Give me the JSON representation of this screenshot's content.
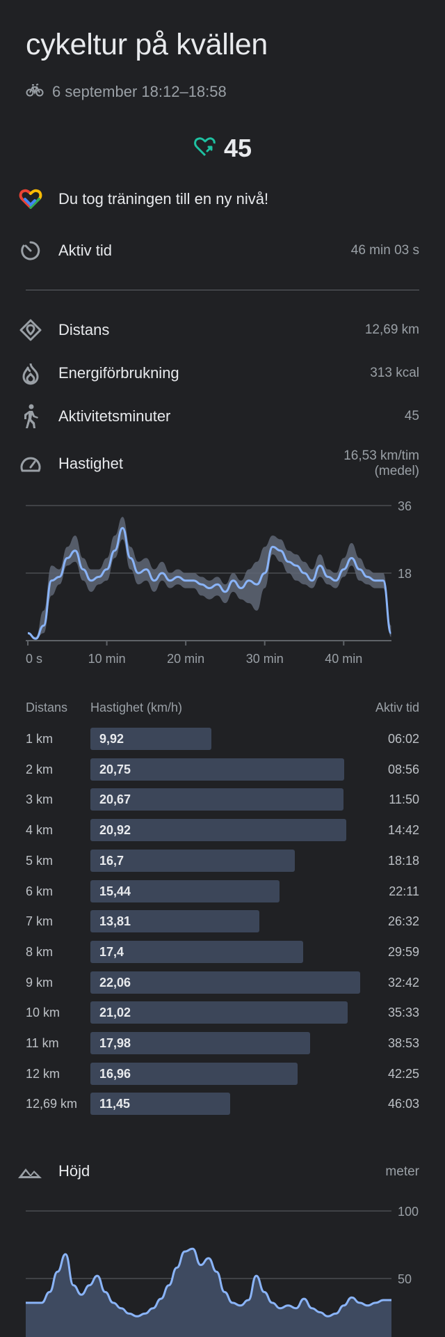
{
  "header": {
    "title": "cykeltur på kvällen",
    "subtitle": "6 september 18:12–18:58",
    "subtitle_icon": "bike-icon"
  },
  "heart_points": {
    "icon": "heart-points-icon",
    "value": "45",
    "color": "#1ec1a1"
  },
  "achievement": {
    "icon": "google-fit-icon",
    "text": "Du tog träningen till en ny nivå!"
  },
  "stats": {
    "active_time": {
      "icon": "timer-icon",
      "label": "Aktiv tid",
      "value": "46 min 03 s"
    },
    "distance": {
      "icon": "location-pin-icon",
      "label": "Distans",
      "value": "12,69 km"
    },
    "energy": {
      "icon": "flame-icon",
      "label": "Energiförbrukning",
      "value": "313 kcal"
    },
    "move_minutes": {
      "icon": "walking-person-icon",
      "label": "Aktivitetsminuter",
      "value": "45"
    },
    "speed": {
      "icon": "speedometer-icon",
      "label": "Hastighet",
      "value_line1": "16,53 km/tim",
      "value_line2": "(medel)"
    }
  },
  "speed_chart": {
    "y_ticks": [
      "36",
      "18"
    ],
    "x_ticks": [
      "0 s",
      "10 min",
      "20 min",
      "30 min",
      "40 min"
    ]
  },
  "chart_data": [
    {
      "type": "line",
      "xlabel": "",
      "ylabel": "",
      "xlim": [
        0,
        46.05
      ],
      "ylim": [
        0,
        36
      ],
      "grid": true,
      "x": [
        0,
        1,
        2,
        3,
        4,
        5,
        6,
        7,
        8,
        9,
        10,
        11,
        12,
        13,
        14,
        15,
        16,
        17,
        18,
        19,
        20,
        21,
        22,
        23,
        24,
        25,
        26,
        27,
        28,
        29,
        30,
        31,
        32,
        33,
        34,
        35,
        36,
        37,
        38,
        39,
        40,
        41,
        42,
        43,
        44,
        45,
        46
      ],
      "series": [
        {
          "values": [
            2,
            0.5,
            4,
            16,
            17,
            22,
            24,
            19,
            16,
            17,
            19,
            24,
            30,
            22,
            18,
            19,
            16,
            18,
            16,
            17,
            16,
            16,
            15,
            14,
            15,
            13,
            16,
            14,
            16,
            15,
            18,
            25,
            24,
            21,
            20,
            18,
            16,
            20,
            17,
            16,
            19,
            22,
            19,
            17,
            16,
            16,
            2
          ]
        }
      ],
      "band": {
        "lower": [
          2,
          0.5,
          2,
          12,
          15,
          20,
          21,
          16,
          13,
          15,
          16,
          22,
          27,
          19,
          15,
          16,
          13,
          16,
          14,
          15,
          14,
          14,
          12,
          11,
          12,
          10,
          13,
          11,
          10,
          8,
          14,
          23,
          21,
          18,
          16,
          15,
          14,
          17,
          15,
          14,
          17,
          20,
          16,
          15,
          14,
          14,
          1
        ],
        "upper": [
          2,
          1,
          8,
          20,
          19,
          25,
          28,
          22,
          19,
          19,
          22,
          28,
          33,
          25,
          21,
          22,
          19,
          21,
          18,
          19,
          18,
          18,
          17,
          16,
          17,
          15,
          18,
          16,
          19,
          21,
          25,
          28,
          27,
          24,
          23,
          21,
          19,
          23,
          19,
          18,
          22,
          26,
          22,
          19,
          18,
          18,
          4
        ]
      }
    },
    {
      "type": "area",
      "xlabel": "",
      "ylabel": "meter",
      "ylim": [
        0,
        100
      ],
      "y_ticks": [
        "100",
        "50"
      ],
      "x": [
        0,
        1,
        2,
        3,
        4,
        5,
        6,
        7,
        8,
        9,
        10,
        11,
        12,
        13,
        14,
        15,
        16,
        17,
        18,
        19,
        20,
        21,
        22,
        23,
        24,
        25,
        26,
        27,
        28,
        29,
        30,
        31,
        32,
        33,
        34,
        35,
        36,
        37,
        38,
        39,
        40,
        41,
        42,
        43,
        44,
        45,
        46
      ],
      "series": [
        {
          "name": "Höjd",
          "values": [
            32,
            32,
            32,
            40,
            55,
            68,
            45,
            38,
            45,
            52,
            40,
            32,
            28,
            24,
            22,
            24,
            28,
            35,
            45,
            58,
            70,
            72,
            60,
            65,
            55,
            40,
            32,
            30,
            34,
            52,
            40,
            32,
            28,
            30,
            28,
            35,
            28,
            25,
            22,
            24,
            30,
            36,
            32,
            30,
            32,
            34,
            34
          ]
        }
      ]
    }
  ],
  "splits": {
    "headers": {
      "distance": "Distans",
      "speed": "Hastighet (km/h)",
      "time": "Aktiv tid"
    },
    "rows": [
      {
        "dist": "1 km",
        "speed_label": "9,92",
        "speed": 9.92,
        "time": "06:02"
      },
      {
        "dist": "2 km",
        "speed_label": "20,75",
        "speed": 20.75,
        "time": "08:56"
      },
      {
        "dist": "3 km",
        "speed_label": "20,67",
        "speed": 20.67,
        "time": "11:50"
      },
      {
        "dist": "4 km",
        "speed_label": "20,92",
        "speed": 20.92,
        "time": "14:42"
      },
      {
        "dist": "5 km",
        "speed_label": "16,7",
        "speed": 16.7,
        "time": "18:18"
      },
      {
        "dist": "6 km",
        "speed_label": "15,44",
        "speed": 15.44,
        "time": "22:11"
      },
      {
        "dist": "7 km",
        "speed_label": "13,81",
        "speed": 13.81,
        "time": "26:32"
      },
      {
        "dist": "8 km",
        "speed_label": "17,4",
        "speed": 17.4,
        "time": "29:59"
      },
      {
        "dist": "9 km",
        "speed_label": "22,06",
        "speed": 22.06,
        "time": "32:42"
      },
      {
        "dist": "10 km",
        "speed_label": "21,02",
        "speed": 21.02,
        "time": "35:33"
      },
      {
        "dist": "11 km",
        "speed_label": "17,98",
        "speed": 17.98,
        "time": "38:53"
      },
      {
        "dist": "12 km",
        "speed_label": "16,96",
        "speed": 16.96,
        "time": "42:25"
      },
      {
        "dist": "12,69 km",
        "speed_label": "11,45",
        "speed": 11.45,
        "time": "46:03"
      }
    ]
  },
  "elevation": {
    "icon": "mountain-icon",
    "label": "Höjd",
    "unit": "meter"
  },
  "colors": {
    "background": "#202124",
    "line": "#8ab4f8",
    "band": "#5f6676",
    "bar": "#3c4659",
    "heart": "#1ec1a1"
  }
}
